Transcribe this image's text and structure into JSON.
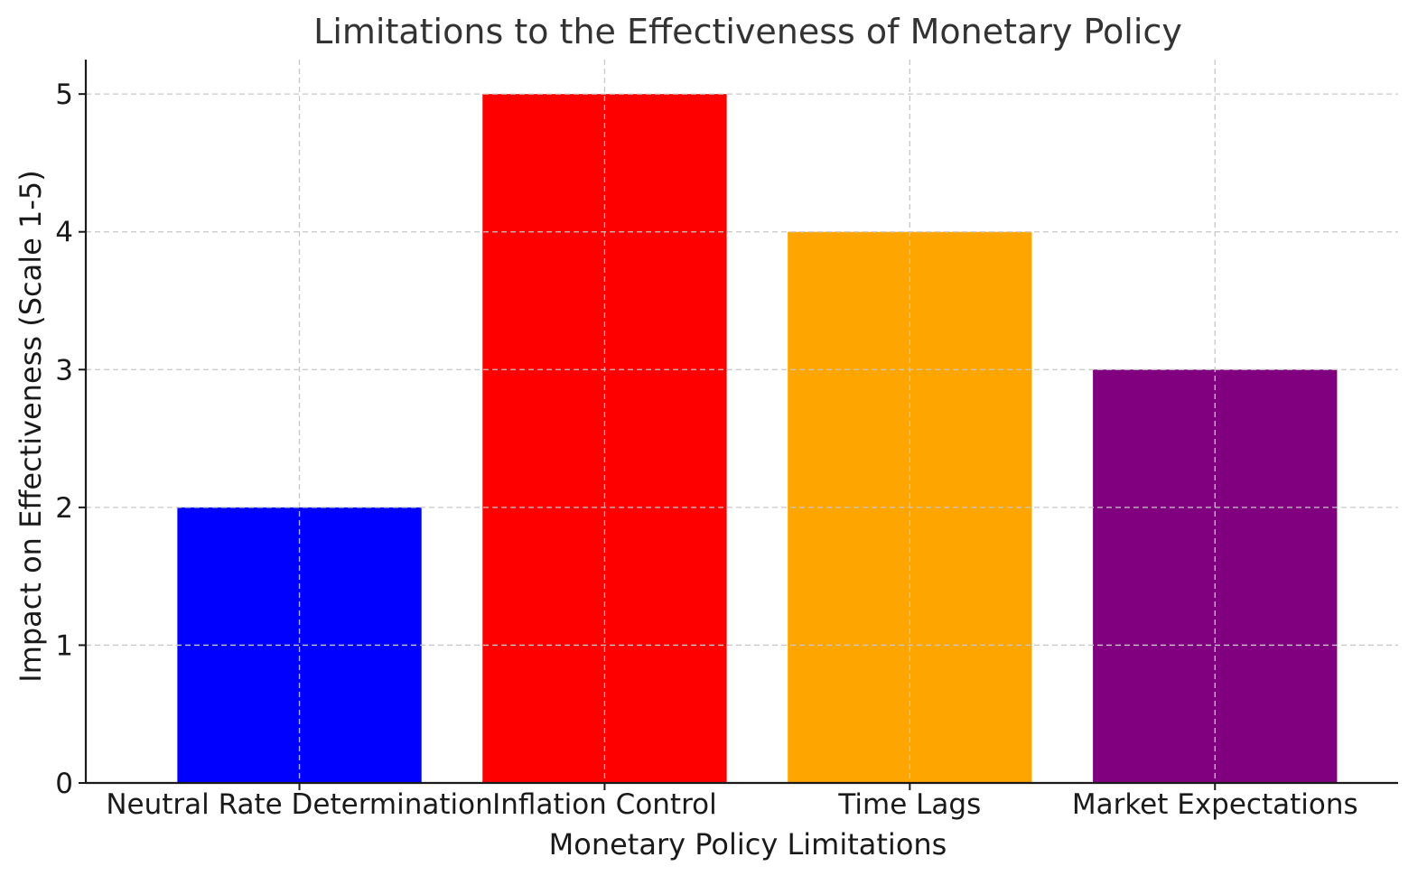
{
  "chart_data": {
    "type": "bar",
    "title": "Limitations to the Effectiveness of Monetary Policy",
    "xlabel": "Monetary Policy Limitations",
    "ylabel": "Impact on Effectiveness (Scale 1-5)",
    "categories": [
      "Neutral Rate Determination",
      "Inflation Control",
      "Time Lags",
      "Market Expectations"
    ],
    "values": [
      2,
      5,
      4,
      3
    ],
    "colors": [
      "#0000ff",
      "#ff0000",
      "#ffa500",
      "#800080"
    ],
    "ylim": [
      0,
      5.25
    ],
    "yticks": [
      0,
      1,
      2,
      3,
      4,
      5
    ],
    "grid": true,
    "legend": "none"
  }
}
